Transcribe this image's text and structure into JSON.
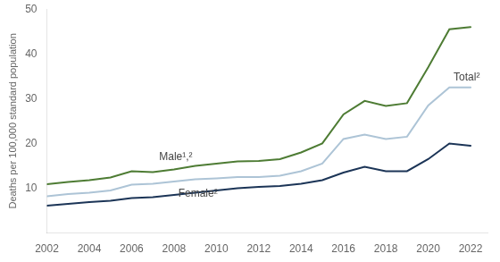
{
  "chart_data": {
    "type": "line",
    "y_label": "Deaths per 100,000 standard population",
    "x": [
      2002,
      2003,
      2004,
      2005,
      2006,
      2007,
      2008,
      2009,
      2010,
      2011,
      2012,
      2013,
      2014,
      2015,
      2016,
      2017,
      2018,
      2019,
      2020,
      2021,
      2022
    ],
    "series": [
      {
        "color": "#4e7c34",
        "values": [
          10.9,
          11.4,
          11.8,
          12.4,
          13.8,
          13.6,
          14.2,
          15.0,
          15.5,
          16.0,
          16.1,
          16.5,
          18.0,
          20.0,
          26.5,
          29.5,
          28.4,
          29.0,
          37.0,
          45.5,
          46.0
        ]
      },
      {
        "color": "#adc4d6",
        "values": [
          8.2,
          8.7,
          9.0,
          9.5,
          10.8,
          11.0,
          11.5,
          12.0,
          12.2,
          12.5,
          12.5,
          12.8,
          13.8,
          15.5,
          21.0,
          22.0,
          21.0,
          21.5,
          28.5,
          32.5,
          32.5
        ]
      },
      {
        "color": "#1c3557",
        "values": [
          6.1,
          6.5,
          6.9,
          7.2,
          7.8,
          8.0,
          8.5,
          9.0,
          9.5,
          10.0,
          10.3,
          10.5,
          11.0,
          11.8,
          13.5,
          14.8,
          13.8,
          13.8,
          16.5,
          20.0,
          19.5
        ]
      }
    ],
    "annotations": [
      {
        "text": "Male¹,²",
        "x": 2007.3,
        "y": 15.8
      },
      {
        "text": "Female²",
        "x": 2008.2,
        "y": 7.5
      },
      {
        "text": "Total²",
        "x": 2021.2,
        "y": 33.5
      }
    ],
    "xlim": [
      2002,
      2022.8
    ],
    "xticks": [
      2002,
      2004,
      2006,
      2008,
      2010,
      2012,
      2014,
      2016,
      2018,
      2020,
      2022
    ],
    "ylim": [
      0,
      50
    ],
    "yticks": [
      {
        "value": 0,
        "label": ""
      },
      10,
      20,
      30,
      40,
      50
    ],
    "grid": false,
    "legend": false
  }
}
